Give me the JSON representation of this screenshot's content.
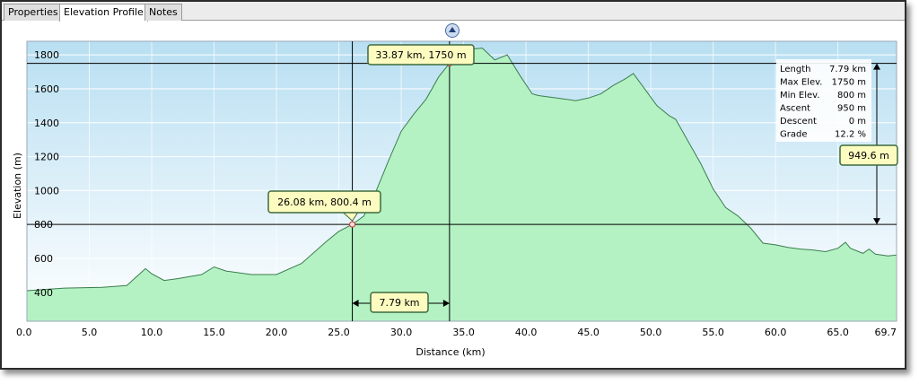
{
  "tabs": [
    {
      "label": "Properties"
    },
    {
      "label": "Elevation Profile"
    },
    {
      "label": "Notes"
    }
  ],
  "colors": {
    "fill": "#b4f2c4",
    "stroke": "#3b7d4f",
    "callout_bg": "#fdfcc0",
    "callout_border": "#3d6b3d",
    "bg_top": "#b8dff2",
    "bg_bottom": "#ffffff"
  },
  "icons": {
    "toggle": "collapse-up-icon"
  },
  "chart_data": {
    "type": "area",
    "xlabel": "Distance   (km)",
    "ylabel": "Elevation (m)",
    "xlim": [
      0,
      69.7
    ],
    "ylim": [
      230,
      1880
    ],
    "x_ticks": [
      "0.0",
      "5.0",
      "10.0",
      "15.0",
      "20.0",
      "25.0",
      "30.0",
      "35.0",
      "40.0",
      "45.0",
      "50.0",
      "55.0",
      "60.0",
      "65.0",
      "69.7"
    ],
    "y_ticks": [
      "400",
      "600",
      "800",
      "1000",
      "1200",
      "1400",
      "1600",
      "1800"
    ],
    "grid": true,
    "series": [
      {
        "x": [
          0,
          3,
          6,
          8,
          9.5,
          10,
          11,
          12,
          14,
          15,
          16,
          18,
          20,
          22,
          24,
          25,
          26.08,
          27,
          28,
          29,
          30,
          31,
          32,
          33,
          33.87,
          35,
          36.5,
          37.5,
          38.5,
          39.5,
          40.5,
          41,
          42,
          43,
          44,
          45,
          46,
          47,
          48,
          48.6,
          49.5,
          50.5,
          51.5,
          52,
          53,
          54,
          55,
          56,
          57,
          58,
          59,
          60,
          61,
          62,
          63,
          64,
          65,
          65.6,
          66,
          67,
          67.5,
          68,
          69,
          69.7
        ],
        "y": [
          410,
          425,
          430,
          440,
          540,
          510,
          470,
          480,
          505,
          550,
          525,
          505,
          505,
          570,
          700,
          760,
          800.4,
          850,
          1000,
          1180,
          1350,
          1450,
          1540,
          1670,
          1750,
          1830,
          1840,
          1770,
          1800,
          1680,
          1570,
          1560,
          1550,
          1540,
          1530,
          1545,
          1570,
          1620,
          1660,
          1690,
          1600,
          1500,
          1440,
          1420,
          1290,
          1160,
          1010,
          900,
          850,
          780,
          690,
          680,
          665,
          655,
          650,
          640,
          660,
          695,
          660,
          630,
          655,
          625,
          615,
          620
        ]
      }
    ],
    "markers": [
      {
        "label": "26.08 km, 800.4 m",
        "x": 26.08,
        "y": 800.4
      },
      {
        "label": "33.87 km, 1750 m",
        "x": 33.87,
        "y": 1750
      }
    ],
    "span_label": "7.79 km",
    "diff_label": "949.6 m",
    "stats": [
      {
        "name": "Length",
        "value": "7.79 km"
      },
      {
        "name": "Max Elev.",
        "value": "1750 m"
      },
      {
        "name": "Min Elev.",
        "value": "800 m"
      },
      {
        "name": "Ascent",
        "value": "950 m"
      },
      {
        "name": "Descent",
        "value": "0 m"
      },
      {
        "name": "Grade",
        "value": "12.2 %"
      }
    ]
  }
}
